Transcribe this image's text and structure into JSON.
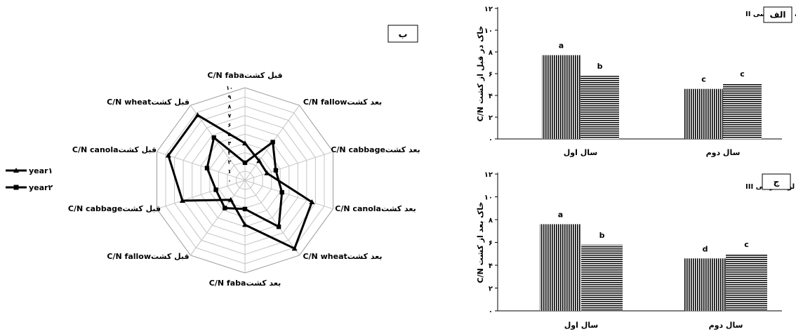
{
  "chart_data": [
    {
      "type": "radar",
      "panel_label": "ب",
      "categories": [
        {
          "axis_name": "fabaقبل کشت",
          "axis_unit": "C/N"
        },
        {
          "axis_name": "fallowبعد کشت",
          "axis_unit": "C/N"
        },
        {
          "axis_name": "cabbageبعد کشت",
          "axis_unit": "C/N"
        },
        {
          "axis_name": "canolaبعد کشت",
          "axis_unit": "C/N"
        },
        {
          "axis_name": "wheatبعد کشت",
          "axis_unit": "C/N"
        },
        {
          "axis_name": "fabaبعد کشت",
          "axis_unit": "C/N"
        },
        {
          "axis_name": "fallowقبل کشت",
          "axis_unit": "C/N"
        },
        {
          "axis_name": "cabbageقبل کشت",
          "axis_unit": "C/N"
        },
        {
          "axis_name": "canolaقبل کشت",
          "axis_unit": "C/N"
        },
        {
          "axis_name": "wheatقبل کشت",
          "axis_unit": "C/N"
        }
      ],
      "radial_ticks": [
        "۰",
        "۱",
        "۲",
        "۳",
        "۴",
        "۵",
        "۶",
        "۷",
        "۸",
        "۹",
        "۱۰"
      ],
      "rmax": 10,
      "series": [
        {
          "name": "year۱",
          "marker": "triangle",
          "values": [
            4,
            2.6,
            2.5,
            7.6,
            9.1,
            4.8,
            2.6,
            7.1,
            8.7,
            8.7
          ]
        },
        {
          "name": "year۲",
          "marker": "square",
          "values": [
            1.9,
            5.1,
            3.5,
            4.2,
            6.2,
            3.1,
            3.7,
            3.3,
            4.3,
            5.7
          ]
        }
      ],
      "legend_position": "left"
    },
    {
      "type": "bar",
      "panel_label": "الف",
      "legend_text": "خاک لومی شنی  =   خاک لومی رسی II",
      "ylabel": "C/N خاک در قبل از کشت",
      "ylim": [
        0,
        12
      ],
      "yticks": [
        "۰",
        "۲",
        "۴",
        "۶",
        "۸",
        "۱۰",
        "۱۲"
      ],
      "categories": [
        "سال اول",
        "سال دوم"
      ],
      "series": [
        {
          "pattern": "vertical",
          "values": [
            7.7,
            4.6
          ],
          "letters": [
            "a",
            "c"
          ]
        },
        {
          "pattern": "horizontal",
          "values": [
            5.8,
            5.1
          ],
          "letters": [
            "b",
            "c"
          ]
        }
      ]
    },
    {
      "type": "bar",
      "panel_label": "ج",
      "legend_text": "خاک لومی شنی  =   خاک لومی رسی III",
      "ylabel": "C/N خاک بعد از کشت",
      "ylim": [
        0,
        12
      ],
      "yticks": [
        "۰",
        "۲",
        "۴",
        "۶",
        "۸",
        "۱۰",
        "۱۲"
      ],
      "categories": [
        "سال اول",
        "سال دوم"
      ],
      "series": [
        {
          "pattern": "vertical",
          "values": [
            7.6,
            4.6
          ],
          "letters": [
            "a",
            "d"
          ]
        },
        {
          "pattern": "horizontal",
          "values": [
            5.8,
            5.0
          ],
          "letters": [
            "b",
            "c"
          ]
        }
      ]
    }
  ]
}
